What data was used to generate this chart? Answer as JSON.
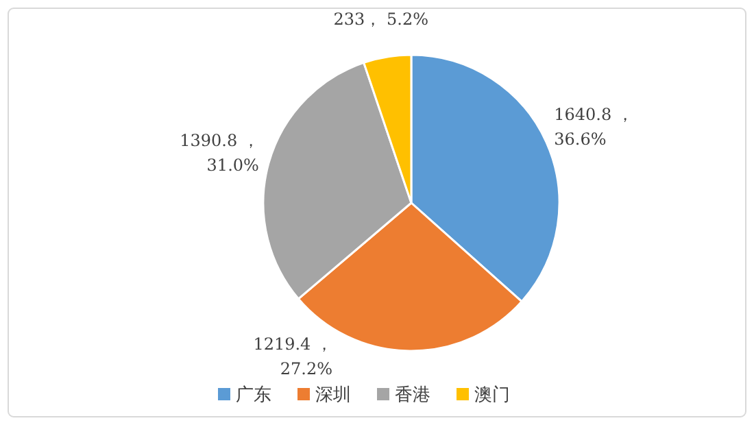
{
  "chart_data": {
    "type": "pie",
    "categories": [
      "广东",
      "深圳",
      "香港",
      "澳门"
    ],
    "values": [
      1640.8,
      1219.4,
      1390.8,
      233
    ],
    "colors": [
      "#5b9bd5",
      "#ed7d31",
      "#a5a5a5",
      "#ffc000"
    ],
    "value_labels": [
      "1640.8 ，\n36.6%",
      "1219.4 ，\n27.2%",
      "1390.8 ，\n31.0%",
      "233， 5.2%"
    ],
    "legend": "bottom"
  }
}
